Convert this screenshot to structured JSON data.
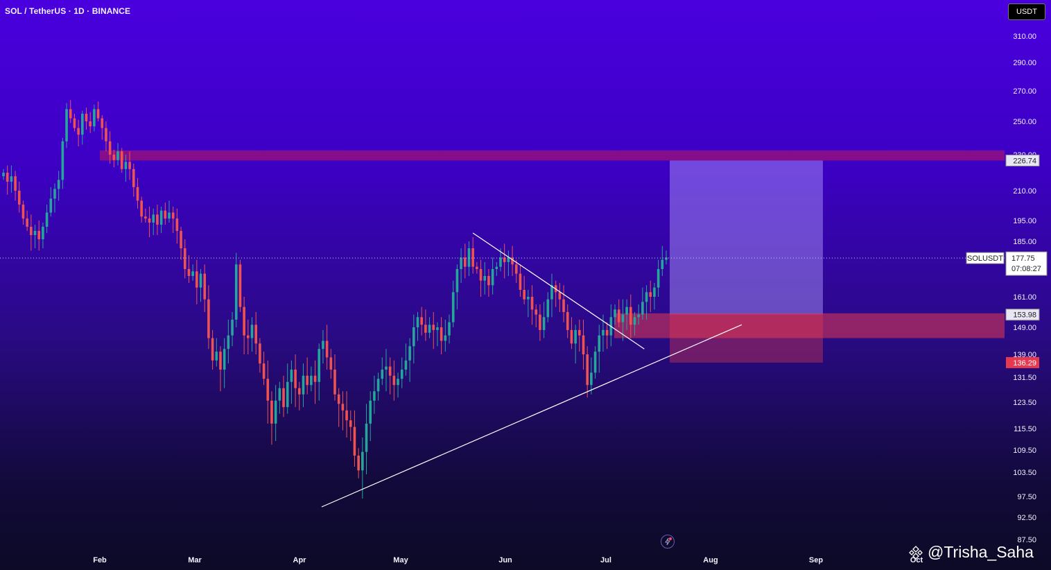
{
  "header": {
    "title": "SOL / TetherUS · 1D · BINANCE",
    "currency": "USDT"
  },
  "watermark": {
    "text": "@Trisha_Saha",
    "icon": "binance-diamond-icon"
  },
  "indicator_icon": "lightning-icon",
  "colors": {
    "up": "#26a69a",
    "down": "#ef5350",
    "resistance_zone": "#c2185b",
    "target_zone": "#b4a0ff",
    "stop_zone": "#e53950",
    "trendline": "#ffffff"
  },
  "chart_data": {
    "type": "candlestick",
    "symbol": "SOLUSDT",
    "interval": "1D",
    "exchange": "BINANCE",
    "y_ticks": [
      310.0,
      290.0,
      270.0,
      250.0,
      230.0,
      210.0,
      195.0,
      185.0,
      161.0,
      149.0,
      139.0,
      131.5,
      123.5,
      115.5,
      109.5,
      103.5,
      97.5,
      92.5,
      87.5
    ],
    "y_tick_labels": [
      "310.00",
      "290.00",
      "270.00",
      "250.00",
      "230.00",
      "210.00",
      "195.00",
      "185.00",
      "161.00",
      "149.00",
      "139.00",
      "131.50",
      "123.50",
      "115.50",
      "109.50",
      "103.50",
      "97.50",
      "92.50",
      "87.50"
    ],
    "x_ticks": [
      "Feb",
      "Mar",
      "Apr",
      "May",
      "Jun",
      "Jul",
      "Aug",
      "Sep",
      "Oct"
    ],
    "last_price": {
      "symbol": "SOLUSDT",
      "value": "177.75",
      "countdown": "07:08:27"
    },
    "target_price": "226.74",
    "entry_price": "153.98",
    "stop_price": "136.29",
    "zones": {
      "resistance": [
        226.74,
        232.5
      ],
      "support": [
        145.0,
        154.5
      ],
      "target": [
        153.98,
        226.74
      ],
      "stop": [
        136.29,
        153.98
      ]
    },
    "trendlines": [
      {
        "name": "rising-support",
        "from": [
          "Apr 7",
          95.0
        ],
        "to": [
          "Aug 10",
          150.0
        ]
      },
      {
        "name": "falling-resistance",
        "from": [
          "May 22",
          189.0
        ],
        "to": [
          "Jul 12",
          141.0
        ]
      }
    ],
    "candles_close": [
      220,
      215,
      218,
      210,
      203,
      196,
      192,
      188,
      190,
      186,
      192,
      199,
      206,
      211,
      216,
      238,
      258,
      252,
      246,
      242,
      255,
      250,
      247,
      258,
      252,
      246,
      238,
      230,
      227,
      232,
      222,
      226,
      222,
      212,
      205,
      197,
      196,
      194,
      198,
      193,
      200,
      196,
      199,
      196,
      190,
      182,
      173,
      170,
      172,
      165,
      171,
      160,
      145,
      137,
      140,
      134,
      141,
      146,
      152,
      175,
      157,
      146,
      145,
      150,
      143,
      136,
      131,
      124,
      117,
      124,
      128,
      122,
      130,
      134,
      128,
      126,
      132,
      129,
      132,
      130,
      141,
      144,
      138,
      134,
      126,
      123,
      121,
      118,
      116,
      108,
      104,
      109,
      117,
      124,
      127,
      131,
      134,
      135,
      132,
      129,
      131,
      134,
      137,
      142,
      149,
      153,
      150,
      147,
      150,
      148,
      149,
      144,
      146,
      151,
      163,
      173,
      178,
      174,
      182,
      174,
      173,
      168,
      170,
      166,
      173,
      174,
      178,
      176,
      178,
      175,
      171,
      164,
      160,
      161,
      156,
      154,
      148,
      153,
      160,
      166,
      163,
      160,
      155,
      148,
      143,
      148,
      146,
      139,
      129,
      133,
      140,
      146,
      148,
      146,
      153,
      156,
      151,
      154,
      157,
      150,
      153,
      154,
      159,
      163,
      161,
      165,
      173,
      177,
      178
    ],
    "candles_open": [
      218,
      220,
      215,
      218,
      210,
      203,
      196,
      192,
      188,
      190,
      186,
      192,
      199,
      206,
      211,
      216,
      238,
      258,
      252,
      246,
      242,
      255,
      250,
      247,
      258,
      252,
      246,
      238,
      230,
      227,
      232,
      222,
      226,
      222,
      212,
      205,
      197,
      196,
      194,
      198,
      193,
      200,
      196,
      199,
      196,
      190,
      182,
      173,
      170,
      172,
      165,
      171,
      160,
      145,
      137,
      140,
      134,
      141,
      146,
      152,
      175,
      157,
      146,
      145,
      150,
      143,
      136,
      131,
      124,
      117,
      124,
      128,
      122,
      130,
      134,
      128,
      126,
      132,
      129,
      132,
      130,
      141,
      144,
      138,
      134,
      126,
      123,
      121,
      118,
      116,
      108,
      104,
      109,
      117,
      124,
      127,
      131,
      134,
      135,
      132,
      129,
      131,
      134,
      137,
      142,
      149,
      153,
      150,
      147,
      150,
      148,
      149,
      144,
      146,
      151,
      163,
      173,
      178,
      174,
      182,
      174,
      173,
      168,
      170,
      166,
      173,
      174,
      178,
      176,
      178,
      175,
      171,
      164,
      160,
      161,
      156,
      154,
      148,
      153,
      160,
      166,
      163,
      160,
      155,
      148,
      143,
      148,
      146,
      139,
      129,
      133,
      140,
      146,
      148,
      146,
      153,
      156,
      151,
      154,
      157,
      150,
      153,
      154,
      159,
      163,
      161,
      165,
      173,
      177
    ],
    "grid": false,
    "legend": "none"
  }
}
